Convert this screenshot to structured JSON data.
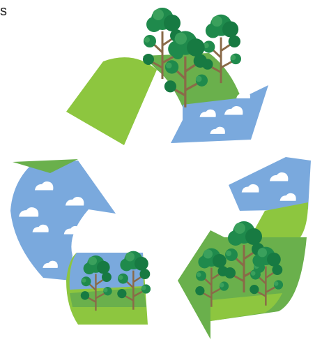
{
  "text": "s"
}
